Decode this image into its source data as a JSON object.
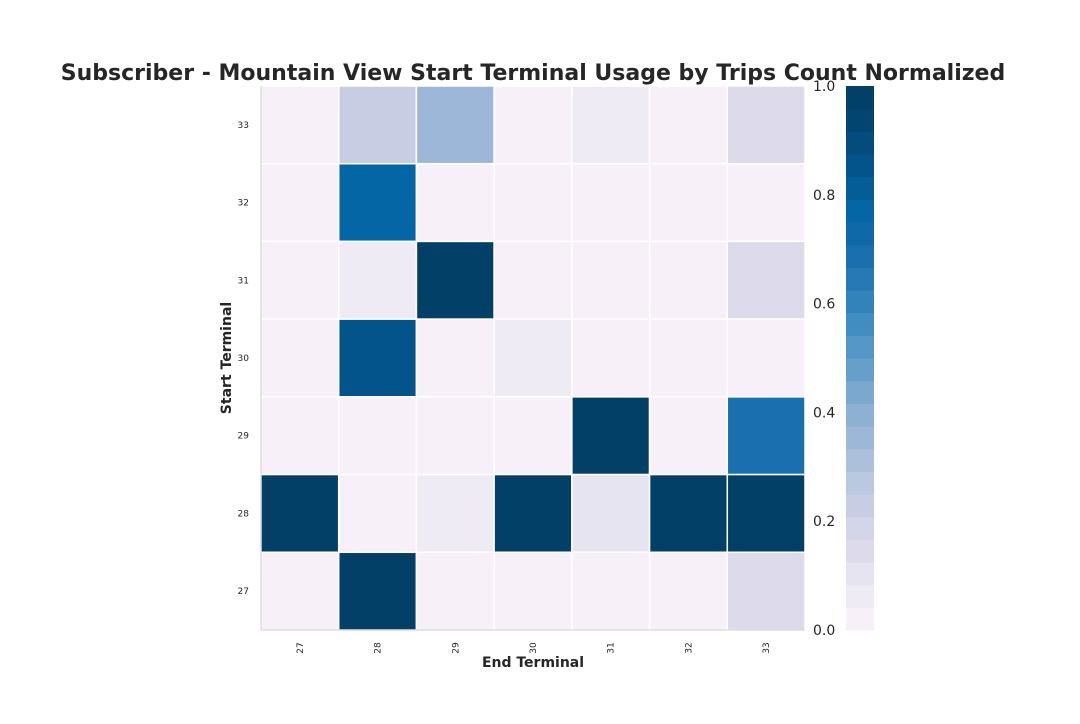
{
  "chart_data": {
    "type": "heatmap",
    "title": "Subscriber - Mountain View Start Terminal Usage by Trips Count Normalized",
    "xlabel": "End Terminal",
    "ylabel": "Start Terminal",
    "x_categories": [
      "27",
      "28",
      "29",
      "30",
      "31",
      "32",
      "33"
    ],
    "y_categories": [
      "33",
      "32",
      "31",
      "30",
      "29",
      "28",
      "27"
    ],
    "values": [
      [
        0.0,
        0.24,
        0.36,
        0.0,
        0.05,
        0.0,
        0.14
      ],
      [
        0.0,
        0.75,
        0.0,
        0.0,
        0.0,
        0.0,
        0.0
      ],
      [
        0.0,
        0.06,
        1.0,
        0.0,
        0.0,
        0.0,
        0.14
      ],
      [
        0.0,
        0.85,
        0.0,
        0.05,
        0.0,
        0.0,
        0.0
      ],
      [
        0.0,
        0.0,
        0.0,
        0.0,
        1.0,
        0.0,
        0.7
      ],
      [
        1.0,
        0.0,
        0.06,
        1.0,
        0.1,
        1.0,
        1.0
      ],
      [
        0.0,
        1.0,
        0.0,
        0.0,
        0.0,
        0.0,
        0.14
      ]
    ],
    "colorbar": {
      "min": 0.0,
      "max": 1.0,
      "ticks": [
        "0.0",
        "0.2",
        "0.4",
        "0.6",
        "0.8",
        "1.0"
      ],
      "colors": [
        "#f7f0f8",
        "#efebf4",
        "#e6e4f0",
        "#dddaeb",
        "#d3d5e8",
        "#c8cde4",
        "#bac8e0",
        "#acc0dc",
        "#9db7d8",
        "#8db0d3",
        "#7aa8cf",
        "#66a0ca",
        "#5597c6",
        "#418dc1",
        "#3383bb",
        "#2679b4",
        "#1a6fae",
        "#0f69a9",
        "#0566a6",
        "#045d96",
        "#03548a",
        "#034c7d",
        "#034571",
        "#024068"
      ]
    },
    "grid": false,
    "legend": "right"
  }
}
